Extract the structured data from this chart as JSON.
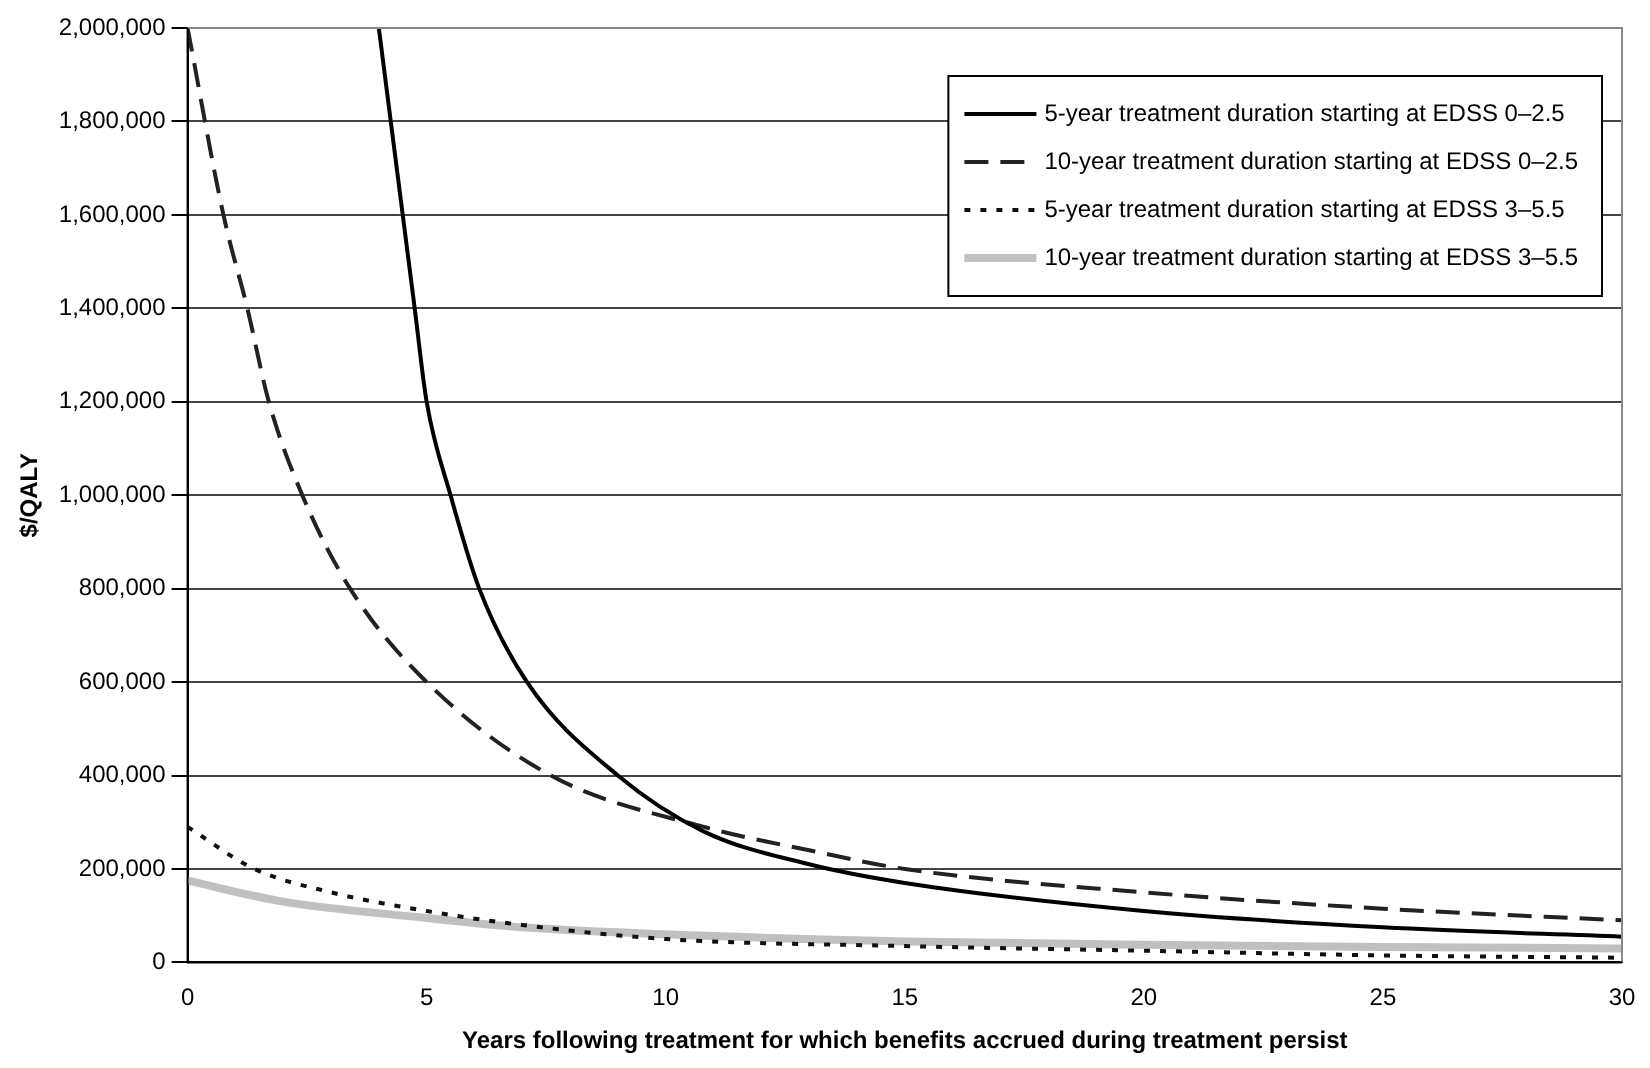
{
  "chart_data": {
    "type": "line",
    "xlabel": "Years following treatment for which benefits accrued during treatment persist",
    "ylabel": "$/QALY",
    "xlim": [
      0,
      30
    ],
    "xticks": [
      0,
      5,
      10,
      15,
      20,
      25,
      30
    ],
    "ylim": [
      0,
      2000000
    ],
    "yticks": [
      {
        "value": 0,
        "label": "0"
      },
      {
        "value": 200000,
        "label": "200,000"
      },
      {
        "value": 400000,
        "label": "400,000"
      },
      {
        "value": 600000,
        "label": "600,000"
      },
      {
        "value": 800000,
        "label": "800,000"
      },
      {
        "value": 1000000,
        "label": "1,000,000"
      },
      {
        "value": 1200000,
        "label": "1,200,000"
      },
      {
        "value": 1400000,
        "label": "1,400,000"
      },
      {
        "value": 1600000,
        "label": "1,600,000"
      },
      {
        "value": 1800000,
        "label": "1,800,000"
      },
      {
        "value": 2000000,
        "label": "2,000,000"
      }
    ],
    "grid": "y",
    "legend": "top right",
    "marker": "none",
    "series": [
      {
        "name": "5-year treatment duration starting at EDSS 0–2.5",
        "color": "#000000",
        "line_style": "solid",
        "x": [
          4,
          4.5,
          4.75,
          5,
          5.5,
          6.1,
          7.1,
          9,
          10.8,
          13,
          15,
          20,
          25,
          30
        ],
        "values": [
          2000000,
          1600000,
          1400000,
          1200000,
          1000000,
          800000,
          600000,
          400000,
          280000,
          210000,
          170000,
          110000,
          75000,
          55000
        ]
      },
      {
        "name": "10-year treatment duration starting at EDSS 0–2.5",
        "color": "#222222",
        "line_style": "dashed",
        "x": [
          0,
          0.75,
          1.25,
          1.7,
          2.4,
          3.4,
          5,
          7.6,
          10.8,
          13,
          15,
          20,
          25,
          30
        ],
        "values": [
          2000000,
          1600000,
          1400000,
          1200000,
          1000000,
          800000,
          600000,
          400000,
          290000,
          240000,
          200000,
          150000,
          115000,
          90000
        ]
      },
      {
        "name": "5-year treatment duration starting at EDSS 3–5.5",
        "color": "#111111",
        "line_style": "dotted",
        "x": [
          0,
          1.4,
          3,
          5,
          7,
          10,
          15,
          20,
          25,
          30
        ],
        "values": [
          290000,
          200000,
          150000,
          110000,
          80000,
          50000,
          35000,
          25000,
          15000,
          10000
        ]
      },
      {
        "name": "10-year treatment duration starting at EDSS 3–5.5",
        "color": "#c0c0c0",
        "line_style": "solid",
        "x": [
          0,
          2,
          5,
          7,
          10,
          15,
          20,
          25,
          30
        ],
        "values": [
          175000,
          130000,
          95000,
          75000,
          60000,
          45000,
          38000,
          33000,
          30000
        ]
      }
    ]
  }
}
